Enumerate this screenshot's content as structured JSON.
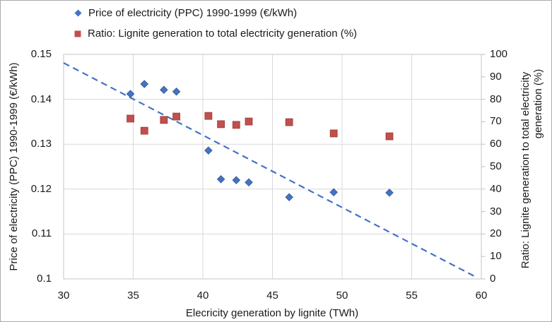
{
  "frame": {
    "background": "#FFFFFF",
    "border_color": "#ABABAB",
    "text_color": "#1A1A1A"
  },
  "legend": {
    "items": [
      {
        "label": "Price of electricity (PPC) 1990-1999 (€/kWh)",
        "marker": "diamond",
        "color": "#4472C4"
      },
      {
        "label": "Ratio: Lignite generation to total electricity generation (%)",
        "marker": "square",
        "color": "#C0504D"
      }
    ]
  },
  "chart_data": {
    "type": "scatter",
    "title": "",
    "xlabel": "Elecricity generation by lignite (TWh)",
    "ylabel_left": "Price of electricity (PPC) 1990-1999 (€/kWh)",
    "ylabel_right_lines": [
      "Ratio: Lignite generation to total electricity",
      "generation (%)"
    ],
    "xlim": [
      30,
      60
    ],
    "ylim_left": [
      0.1,
      0.15
    ],
    "ylim_right": [
      0,
      100
    ],
    "x_ticks": [
      30,
      35,
      40,
      45,
      50,
      55,
      60
    ],
    "x_tick_labels": [
      "30",
      "35",
      "40",
      "45",
      "50",
      "55",
      "60"
    ],
    "y_left_ticks": [
      0.1,
      0.11,
      0.12,
      0.13,
      0.14,
      0.15
    ],
    "y_left_tick_labels": [
      "0.1",
      "0.11",
      "0.12",
      "0.13",
      "0.14",
      "0.15"
    ],
    "y_right_ticks": [
      0,
      10,
      20,
      30,
      40,
      50,
      60,
      70,
      80,
      90,
      100
    ],
    "y_right_tick_labels": [
      "0",
      "10",
      "20",
      "30",
      "40",
      "50",
      "60",
      "70",
      "80",
      "90",
      "100"
    ],
    "grid": true,
    "grid_color": "#D9D9D9",
    "plot_border_color": "#C6C6C6",
    "tick_mark_color": "#BFBFBF",
    "legend_position": "top-left",
    "series": [
      {
        "name": "Price of electricity (PPC) 1990-1999 (€/kWh)",
        "axis": "left",
        "marker": "diamond",
        "color": "#4472C4",
        "edge_color": "#35598E",
        "points": [
          [
            34.8,
            0.1412
          ],
          [
            35.8,
            0.1434
          ],
          [
            37.2,
            0.1421
          ],
          [
            38.1,
            0.1417
          ],
          [
            40.4,
            0.1286
          ],
          [
            41.3,
            0.1222
          ],
          [
            42.4,
            0.122
          ],
          [
            43.3,
            0.1215
          ],
          [
            46.2,
            0.1182
          ],
          [
            49.4,
            0.1193
          ],
          [
            53.4,
            0.1192
          ]
        ]
      },
      {
        "name": "Ratio: Lignite generation to total electricity generation (%)",
        "axis": "right",
        "marker": "square",
        "color": "#C0504D",
        "edge_color": "#9E3B38",
        "points": [
          [
            34.8,
            71.4
          ],
          [
            35.8,
            66
          ],
          [
            37.2,
            70.8
          ],
          [
            38.1,
            72.3
          ],
          [
            40.4,
            72.6
          ],
          [
            41.3,
            68.9
          ],
          [
            42.4,
            68.6
          ],
          [
            43.3,
            70.1
          ],
          [
            46.2,
            69.8
          ],
          [
            49.4,
            64.8
          ],
          [
            53.4,
            63.5
          ]
        ]
      }
    ],
    "trendline": {
      "for_series": "Price of electricity (PPC) 1990-1999 (€/kWh)",
      "style": "dashed",
      "color": "#4472C4",
      "x1": 30,
      "y1": 0.1481,
      "x2": 59.7,
      "y2": 0.1003
    }
  }
}
